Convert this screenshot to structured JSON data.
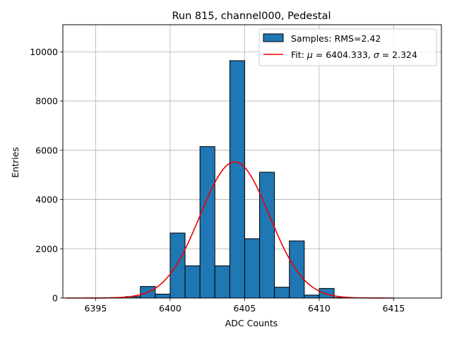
{
  "chart_data": {
    "type": "bar",
    "title": "Run 815, channel000, Pedestal",
    "xlabel": "ADC Counts",
    "ylabel": "Entries",
    "xlim": [
      6392.8,
      6418.2
    ],
    "ylim": [
      0,
      11100
    ],
    "grid": true,
    "xticks": [
      6395,
      6400,
      6405,
      6410,
      6415
    ],
    "yticks": [
      0,
      2000,
      4000,
      6000,
      8000,
      10000
    ],
    "bin_width": 1,
    "bins": [
      {
        "left": 6396,
        "count": 20
      },
      {
        "left": 6397,
        "count": 60
      },
      {
        "left": 6398,
        "count": 470
      },
      {
        "left": 6399,
        "count": 160
      },
      {
        "left": 6400,
        "count": 2640
      },
      {
        "left": 6401,
        "count": 1310
      },
      {
        "left": 6402,
        "count": 6150
      },
      {
        "left": 6403,
        "count": 1310
      },
      {
        "left": 6404,
        "count": 9640
      },
      {
        "left": 6405,
        "count": 2410
      },
      {
        "left": 6406,
        "count": 5110
      },
      {
        "left": 6407,
        "count": 440
      },
      {
        "left": 6408,
        "count": 2320
      },
      {
        "left": 6409,
        "count": 120
      },
      {
        "left": 6410,
        "count": 390
      },
      {
        "left": 6411,
        "count": 20
      }
    ],
    "fit": {
      "mu": 6404.333,
      "sigma": 2.324,
      "amplitude": 5530,
      "x_range": [
        6393,
        6415
      ]
    },
    "legend_position": "top-right",
    "legend": {
      "samples_label": "Samples: RMS=2.42",
      "fit_label_prefix": "Fit: ",
      "fit_mu_symbol": "μ",
      "fit_mu_text": " = 6404.333, ",
      "fit_sigma_symbol": "σ",
      "fit_sigma_text": " = 2.324"
    },
    "colors": {
      "bar": "#1f77b4",
      "bar_edge": "#000000",
      "fit": "#ee0000",
      "grid": "#b0b0b0"
    }
  }
}
